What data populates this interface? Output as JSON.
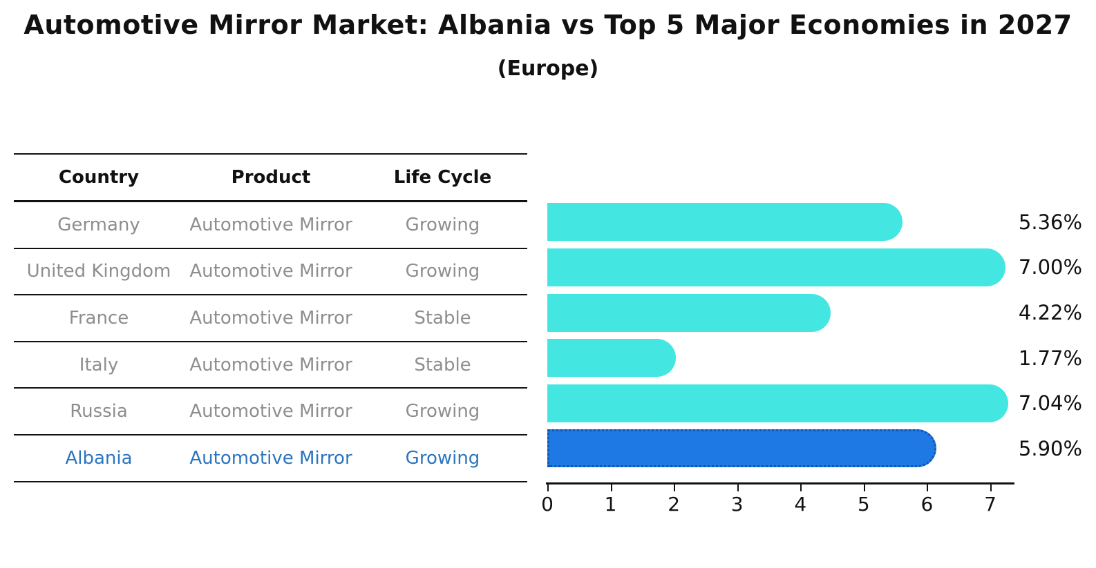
{
  "title": {
    "text": "Automotive Mirror Market: Albania vs Top 5 Major Economies in 2027",
    "subtitle": "(Europe)"
  },
  "table": {
    "headers": [
      "Country",
      "Product",
      "Life Cycle"
    ],
    "rows": [
      {
        "country": "Germany",
        "product": "Automotive Mirror",
        "life_cycle": "Growing",
        "highlight": false
      },
      {
        "country": "United Kingdom",
        "product": "Automotive Mirror",
        "life_cycle": "Growing",
        "highlight": false
      },
      {
        "country": "France",
        "product": "Automotive Mirror",
        "life_cycle": "Stable",
        "highlight": false
      },
      {
        "country": "Italy",
        "product": "Automotive Mirror",
        "life_cycle": "Stable",
        "highlight": false
      },
      {
        "country": "Russia",
        "product": "Automotive Mirror",
        "life_cycle": "Growing",
        "highlight": false
      },
      {
        "country": "Albania",
        "product": "Automotive Mirror",
        "life_cycle": "Growing",
        "highlight": true
      }
    ]
  },
  "chart_data": {
    "type": "bar",
    "orientation": "horizontal",
    "title": "Automotive Mirror Market: Albania vs Top 5 Major Economies in 2027 (Europe)",
    "categories": [
      "Germany",
      "United Kingdom",
      "France",
      "Italy",
      "Russia",
      "Albania"
    ],
    "values": [
      5.36,
      7.0,
      4.22,
      1.77,
      7.04,
      5.9
    ],
    "value_labels": [
      "5.36%",
      "7.00%",
      "4.22%",
      "1.77%",
      "7.04%",
      "5.90%"
    ],
    "x_ticks": [
      "0",
      "1",
      "2",
      "3",
      "4",
      "5",
      "6",
      "7"
    ],
    "xlim": [
      0,
      7.4
    ],
    "grid": false,
    "legend": false,
    "colors": {
      "bar": "#43e6e1",
      "highlight_fill": "#1e79e4",
      "highlight_border": "#1356ad",
      "highlight_text": "#2b75c0",
      "table_text": "#8e8e8e",
      "text": "#111111"
    }
  }
}
